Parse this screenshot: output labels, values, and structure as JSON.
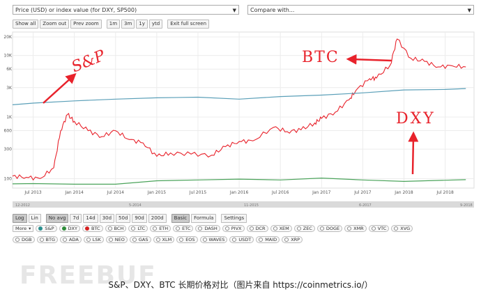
{
  "top": {
    "metric_select": "Price (USD) or index value (for DXY, SP500)",
    "compare_select": "Compare with..."
  },
  "zoom_buttons": [
    "Show all",
    "Zoom out",
    "Prev zoom"
  ],
  "range_buttons": [
    "1m",
    "3m",
    "1y",
    "ytd"
  ],
  "fullscreen_button": "Exit full screen",
  "chart_data": {
    "type": "line",
    "y_scale": "log",
    "y_ticks": [
      "20K",
      "10K",
      "6K",
      "3K",
      "1K",
      "600",
      "300",
      "100"
    ],
    "x_ticks": [
      "Jul 2013",
      "Jan 2014",
      "Jul 2014",
      "Jan 2015",
      "Jul 2015",
      "Jan 2016",
      "Jul 2016",
      "Jan 2017",
      "Jul 2017",
      "Jan 2018",
      "Jul 2018"
    ],
    "series": [
      {
        "name": "BTC",
        "color": "#e8222b",
        "x": [
          "2013-04",
          "2013-06",
          "2013-08",
          "2013-10",
          "2013-11",
          "2013-12",
          "2014-01",
          "2014-03",
          "2014-05",
          "2014-07",
          "2014-09",
          "2014-11",
          "2015-01",
          "2015-03",
          "2015-06",
          "2015-09",
          "2015-11",
          "2016-01",
          "2016-03",
          "2016-06",
          "2016-08",
          "2016-10",
          "2016-12",
          "2017-01",
          "2017-03",
          "2017-05",
          "2017-06",
          "2017-08",
          "2017-09",
          "2017-11",
          "2017-12",
          "2018-02",
          "2018-04",
          "2018-06",
          "2018-08",
          "2018-10"
        ],
        "values": [
          110,
          105,
          100,
          150,
          600,
          1100,
          850,
          600,
          480,
          600,
          430,
          380,
          230,
          260,
          250,
          240,
          330,
          400,
          410,
          680,
          580,
          620,
          800,
          950,
          1200,
          1900,
          2700,
          4200,
          4300,
          7000,
          18500,
          9000,
          8000,
          6500,
          6800,
          6500
        ]
      },
      {
        "color": "#5a9fb8",
        "x": [
          "2013-04",
          "2013-07",
          "2014-01",
          "2014-07",
          "2015-01",
          "2015-07",
          "2016-01",
          "2016-07",
          "2017-01",
          "2017-07",
          "2018-01",
          "2018-07",
          "2018-10"
        ],
        "values": [
          1580,
          1680,
          1830,
          1950,
          2050,
          2100,
          1950,
          2150,
          2270,
          2470,
          2750,
          2800,
          2900
        ]
      },
      {
        "color": "#4aa35a",
        "x": [
          "2013-04",
          "2013-07",
          "2014-01",
          "2014-07",
          "2015-01",
          "2015-07",
          "2016-01",
          "2016-07",
          "2017-01",
          "2017-07",
          "2018-01",
          "2018-07",
          "2018-10"
        ],
        "values": [
          82,
          83,
          81,
          81,
          92,
          95,
          98,
          95,
          102,
          95,
          90,
          94,
          96
        ]
      }
    ],
    "navigator_labels": [
      "12-2012",
      "5-2014",
      "11-2015",
      "6-2017",
      "9-2018"
    ]
  },
  "bottom_controls": {
    "scale": [
      "Log",
      "Lin"
    ],
    "avg": [
      "No avg",
      "7d",
      "14d",
      "30d",
      "50d",
      "90d",
      "200d"
    ],
    "mode": [
      "Basic",
      "Formula"
    ],
    "settings": "Settings"
  },
  "assets_row1": [
    {
      "label": "More",
      "type": "select"
    },
    {
      "label": "S&P",
      "color": "#2a8f8f",
      "checked": true
    },
    {
      "label": "DXY",
      "color": "#2e8b3a",
      "checked": true
    },
    {
      "label": "BTC",
      "color": "#d42020",
      "checked": true
    },
    {
      "label": "BCH"
    },
    {
      "label": "LTC"
    },
    {
      "label": "ETH"
    },
    {
      "label": "ETC"
    },
    {
      "label": "DASH"
    },
    {
      "label": "PIVX"
    },
    {
      "label": "DCR"
    },
    {
      "label": "XEM"
    },
    {
      "label": "ZEC"
    },
    {
      "label": "DOGE"
    },
    {
      "label": "XMR"
    },
    {
      "label": "VTC"
    },
    {
      "label": "XVG"
    }
  ],
  "assets_row2": [
    {
      "label": "DGB"
    },
    {
      "label": "BTG"
    },
    {
      "label": "ADA"
    },
    {
      "label": "LSK"
    },
    {
      "label": "NEO"
    },
    {
      "label": "GAS"
    },
    {
      "label": "XLM"
    },
    {
      "label": "EOS"
    },
    {
      "label": "WAVES"
    },
    {
      "label": "USDT"
    },
    {
      "label": "MAID"
    },
    {
      "label": "XRP"
    }
  ],
  "annotations": {
    "sp": "S&P",
    "btc": "BTC",
    "dxy": "DXY"
  },
  "watermark": "FREEBUF",
  "caption": "S&P、DXY、BTC 长期价格对比（图片来自 https://coinmetrics.io/）"
}
